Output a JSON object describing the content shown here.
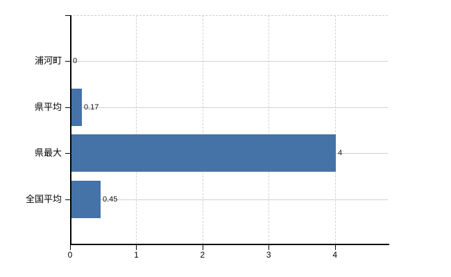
{
  "chart_data": {
    "type": "bar",
    "orientation": "horizontal",
    "title": "",
    "xlabel": "",
    "ylabel": "",
    "categories": [
      "浦河町",
      "県平均",
      "県最大",
      "全国平均"
    ],
    "values": [
      0,
      0.17,
      4,
      0.45
    ],
    "value_labels": [
      "0",
      "0.17",
      "4",
      "0.45"
    ],
    "x_ticks": [
      0,
      1,
      2,
      3,
      4
    ],
    "x_tick_labels": [
      "0",
      "1",
      "2",
      "3",
      "4"
    ],
    "xlim": [
      0,
      4.8
    ],
    "grid": "on",
    "legend": "none"
  },
  "colors": {
    "bar": "#4572a7",
    "axis": "#000000",
    "grid_horizontal": "#ccd4cc",
    "grid_vertical": "#d4d0d4",
    "plot_top_border": "#d0ccd0",
    "label_text": "#000000",
    "background": "#ffffff"
  }
}
